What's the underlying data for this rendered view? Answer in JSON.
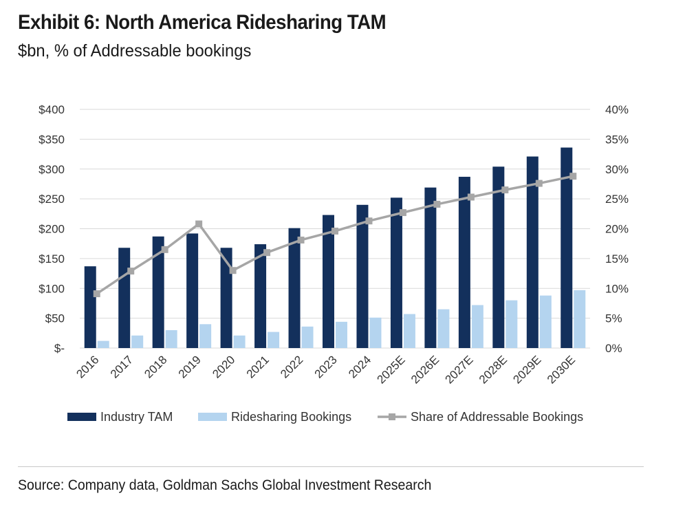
{
  "title": "Exhibit 6: North America Ridesharing TAM",
  "subtitle": "$bn, % of Addressable bookings",
  "source": "Source: Company data, Goldman Sachs Global Investment Research",
  "colors": {
    "industry_tam": "#13305c",
    "ridesharing_bookings": "#b4d4ef",
    "share_line": "#a6a6a6",
    "gridline": "#d9d9d9"
  },
  "chart_data": {
    "type": "bar",
    "categories": [
      "2016",
      "2017",
      "2018",
      "2019",
      "2020",
      "2021",
      "2022",
      "2023",
      "2024",
      "2025E",
      "2026E",
      "2027E",
      "2028E",
      "2029E",
      "2030E"
    ],
    "series": [
      {
        "name": "Industry TAM",
        "type": "bar",
        "axis": "left",
        "values": [
          137,
          168,
          187,
          192,
          168,
          174,
          201,
          223,
          240,
          252,
          269,
          287,
          304,
          321,
          336
        ]
      },
      {
        "name": "Ridesharing Bookings",
        "type": "bar",
        "axis": "left",
        "values": [
          12,
          21,
          30,
          40,
          21,
          27,
          36,
          44,
          51,
          57,
          65,
          72,
          80,
          88,
          97
        ]
      },
      {
        "name": "Share of Addressable Bookings",
        "type": "line",
        "axis": "right",
        "values": [
          9.1,
          12.9,
          16.5,
          20.8,
          13.0,
          16.0,
          18.1,
          19.6,
          21.3,
          22.7,
          24.1,
          25.3,
          26.5,
          27.6,
          28.8
        ]
      }
    ],
    "y_left": {
      "min": 0,
      "max": 400,
      "step": 50,
      "tick_labels": [
        "$-",
        "$50",
        "$100",
        "$150",
        "$200",
        "$250",
        "$300",
        "$350",
        "$400"
      ]
    },
    "y_right": {
      "min": 0,
      "max": 40,
      "step": 5,
      "tick_labels": [
        "0%",
        "5%",
        "10%",
        "15%",
        "20%",
        "25%",
        "30%",
        "35%",
        "40%"
      ]
    },
    "grid": true,
    "legend_position": "bottom"
  }
}
